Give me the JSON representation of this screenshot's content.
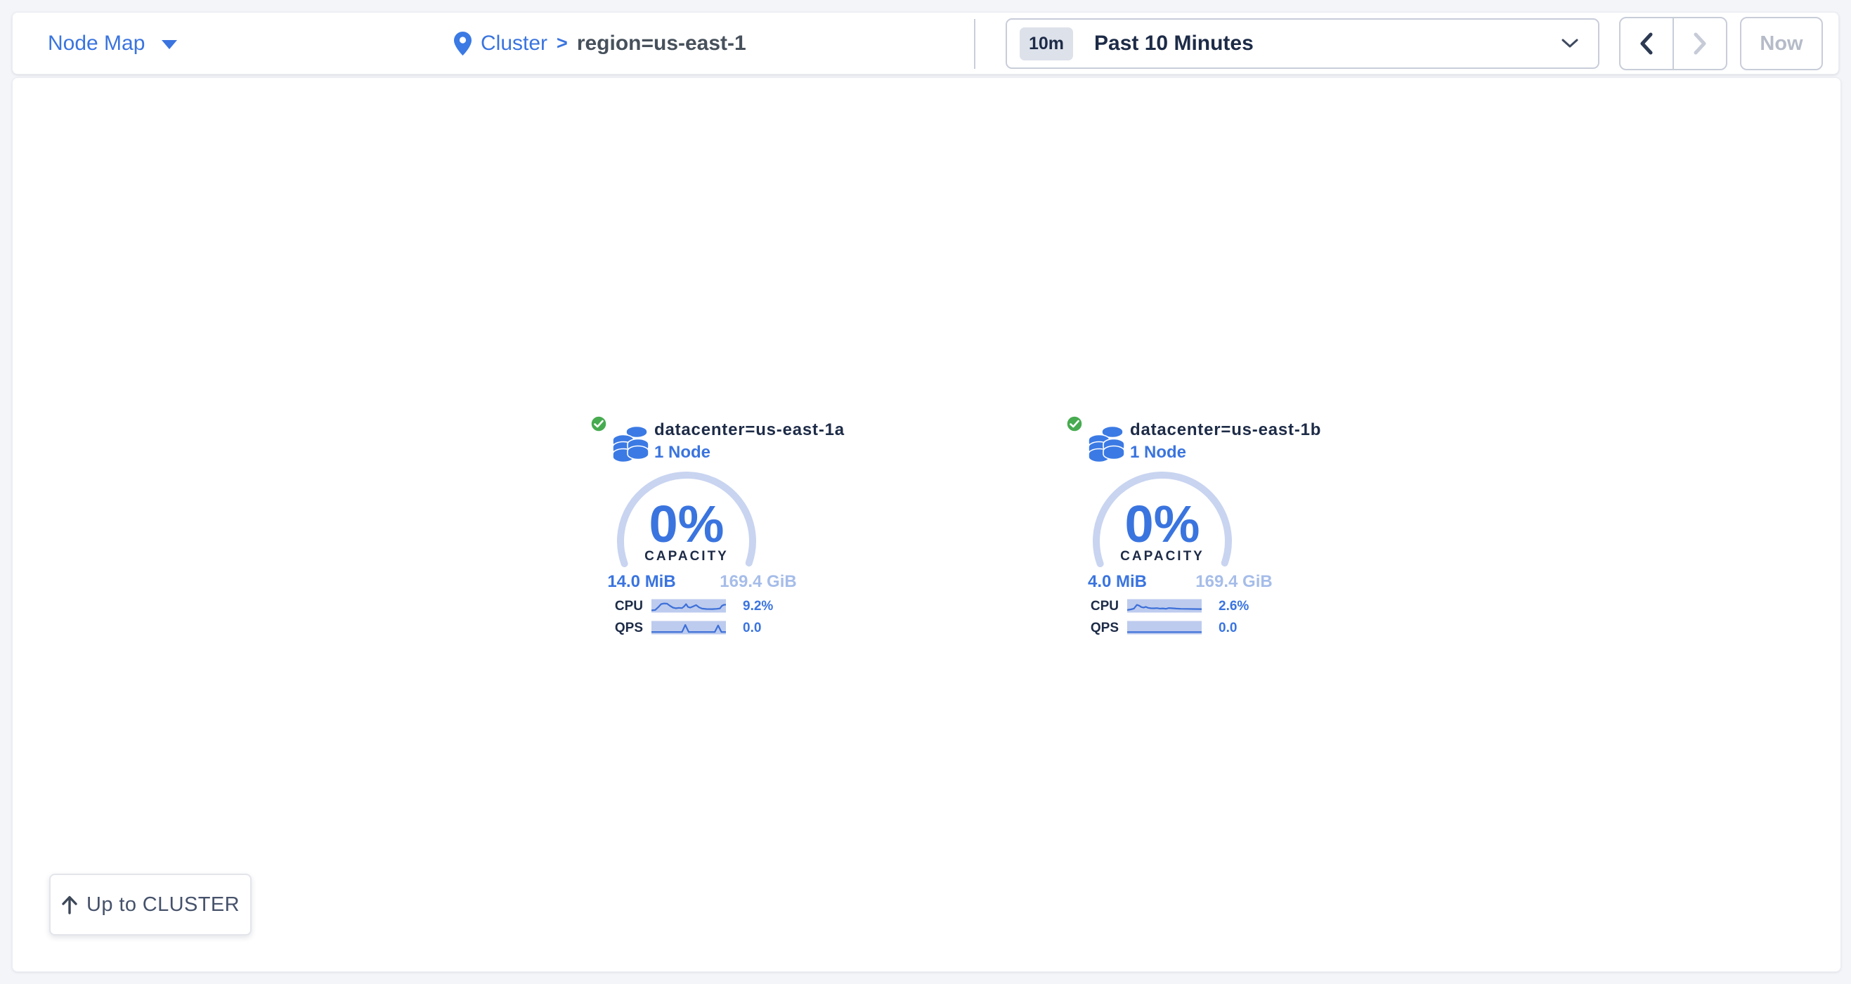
{
  "colors": {
    "page_bg": "#f4f5f9",
    "panel_bg": "#ffffff",
    "blue": "#3a74df",
    "icon_blue": "#3b7ae4",
    "dark_navy": "#1d2b47",
    "breadcrumb_dark": "#47515c",
    "slate": "#46526b",
    "arc_track": "#c8d4f0",
    "faint_blue": "#a6bde9",
    "spark_fill": "#bdcbee",
    "spark_line": "#3c6fd8",
    "green": "#47ab50",
    "control_border": "#c8cdd9",
    "divider": "#c9cedb",
    "disabled": "#b5bbc8",
    "badge_bg": "#dde1ea"
  },
  "icons": {
    "view_caret": "caret-down",
    "breadcrumb_pin": "location-pin",
    "time_chevron": "chevron-down",
    "prev": "chevron-left",
    "next": "chevron-right",
    "locality_status": "check-circle",
    "locality_type": "node-stack",
    "up": "arrow-up"
  },
  "header": {
    "view_selector": {
      "label": "Node Map"
    },
    "breadcrumb": {
      "root": "Cluster",
      "separator": ">",
      "current": "region=us-east-1"
    },
    "time_selector": {
      "badge": "10m",
      "label": "Past 10 Minutes"
    },
    "now_button": {
      "label": "Now"
    }
  },
  "map": {
    "localities": [
      {
        "title": "datacenter=us-east-1a",
        "node_count": "1 Node",
        "capacity": {
          "percent": "0%",
          "label": "CAPACITY",
          "used": "14.0 MiB",
          "total": "169.4 GiB"
        },
        "metrics": [
          {
            "label": "CPU",
            "value": "9.2%",
            "spark": [
              [
                0,
                0.05
              ],
              [
                0.05,
                0.08
              ],
              [
                0.09,
                0.35
              ],
              [
                0.13,
                0.68
              ],
              [
                0.17,
                0.74
              ],
              [
                0.21,
                0.72
              ],
              [
                0.25,
                0.5
              ],
              [
                0.29,
                0.32
              ],
              [
                0.33,
                0.26
              ],
              [
                0.37,
                0.3
              ],
              [
                0.41,
                0.27
              ],
              [
                0.44,
                0.45
              ],
              [
                0.465,
                0.68
              ],
              [
                0.49,
                0.4
              ],
              [
                0.52,
                0.32
              ],
              [
                0.56,
                0.44
              ],
              [
                0.6,
                0.58
              ],
              [
                0.64,
                0.35
              ],
              [
                0.68,
                0.22
              ],
              [
                0.74,
                0.18
              ],
              [
                0.82,
                0.17
              ],
              [
                0.88,
                0.2
              ],
              [
                0.92,
                0.24
              ],
              [
                0.945,
                0.5
              ],
              [
                0.97,
                0.6
              ],
              [
                1,
                0.62
              ]
            ]
          },
          {
            "label": "QPS",
            "value": "0.0",
            "spark": [
              [
                0,
                0.06
              ],
              [
                0.41,
                0.06
              ],
              [
                0.455,
                0.78
              ],
              [
                0.5,
                0.06
              ],
              [
                0.85,
                0.06
              ],
              [
                0.895,
                0.72
              ],
              [
                0.94,
                0.06
              ],
              [
                1,
                0.06
              ]
            ]
          }
        ]
      },
      {
        "title": "datacenter=us-east-1b",
        "node_count": "1 Node",
        "capacity": {
          "percent": "0%",
          "label": "CAPACITY",
          "used": "4.0 MiB",
          "total": "169.4 GiB"
        },
        "metrics": [
          {
            "label": "CPU",
            "value": "2.6%",
            "spark": [
              [
                0,
                0.08
              ],
              [
                0.05,
                0.14
              ],
              [
                0.09,
                0.22
              ],
              [
                0.13,
                0.6
              ],
              [
                0.16,
                0.52
              ],
              [
                0.19,
                0.38
              ],
              [
                0.22,
                0.33
              ],
              [
                0.25,
                0.4
              ],
              [
                0.28,
                0.3
              ],
              [
                0.32,
                0.26
              ],
              [
                0.36,
                0.25
              ],
              [
                0.4,
                0.27
              ],
              [
                0.44,
                0.22
              ],
              [
                0.48,
                0.24
              ],
              [
                0.52,
                0.2
              ],
              [
                0.56,
                0.28
              ],
              [
                0.6,
                0.26
              ],
              [
                0.66,
                0.22
              ],
              [
                0.72,
                0.2
              ],
              [
                0.8,
                0.19
              ],
              [
                0.9,
                0.18
              ],
              [
                1,
                0.17
              ]
            ]
          },
          {
            "label": "QPS",
            "value": "0.0",
            "spark": [
              [
                0,
                0.05
              ],
              [
                1,
                0.05
              ]
            ]
          }
        ]
      }
    ],
    "up_button": {
      "label": "Up to CLUSTER"
    }
  }
}
